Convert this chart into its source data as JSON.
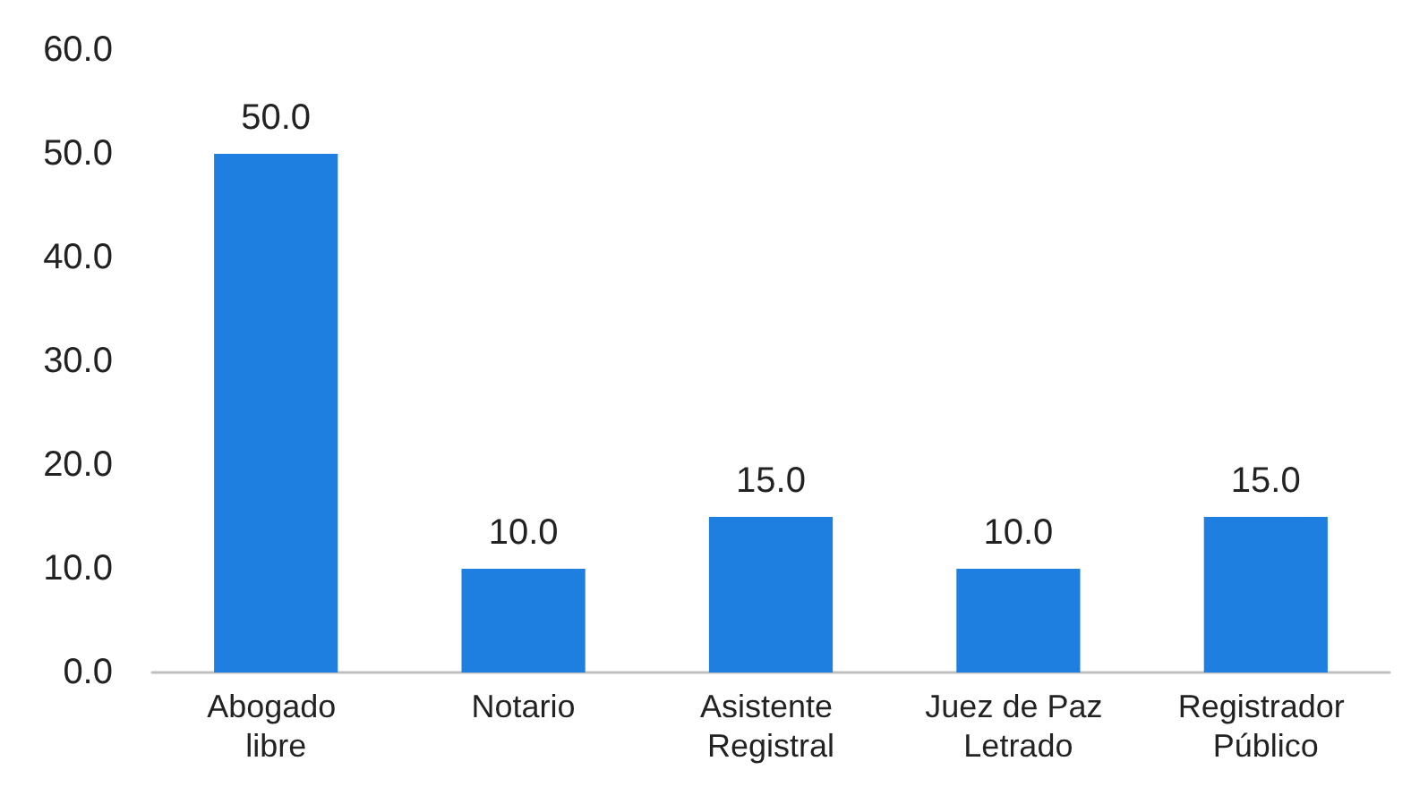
{
  "chart_data": {
    "type": "bar",
    "categories": [
      "Abogado libre",
      "Notario",
      "Asistente Registral",
      "Juez de Paz Letrado",
      "Registrador Público"
    ],
    "values": [
      50,
      10,
      15,
      10,
      15
    ],
    "value_labels": [
      "50.0",
      "10.0",
      "15.0",
      "10.0",
      "15.0"
    ],
    "color": "#1f7fe0",
    "ylim": [
      0,
      60
    ],
    "yticks": [
      {
        "value": 0,
        "label": "0.0"
      },
      {
        "value": 10,
        "label": "10.0"
      },
      {
        "value": 20,
        "label": "20.0"
      },
      {
        "value": 30,
        "label": "30.0"
      },
      {
        "value": 40,
        "label": "40.0"
      },
      {
        "value": 50,
        "label": "50.0"
      },
      {
        "value": 60,
        "label": "60.0"
      }
    ]
  }
}
